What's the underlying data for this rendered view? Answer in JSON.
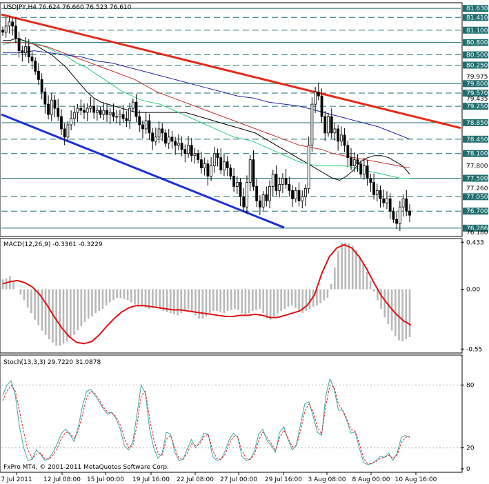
{
  "window": {
    "symbol_header": "USDJPY,H4  76.624 76.660 76.523 76.610"
  },
  "colors": {
    "background": "#ffffff",
    "price_line_box": "#1e6e6e",
    "candle": "#000000",
    "resistance_trend": "#e32a1a",
    "support_trend": "#1c2fd0",
    "ma_fast": "#000000",
    "ma_green": "#2fcf7f",
    "ma_red": "#c03030",
    "ma_blue": "#2020a0",
    "macd_hist": "#b8b8b8",
    "macd_signal": "#e01010",
    "stoch_main": "#3fa5a5",
    "stoch_signal": "#e02020"
  },
  "chart_data": [
    {
      "type": "candlestick",
      "title": "USDJPY,H4  76.624 76.660 76.523 76.610",
      "ylim": [
        76.1,
        81.75
      ],
      "x_tick_labels": [
        "7 Jul 2011",
        "12 Jul 08:00",
        "15 Jul 00:00",
        "19 Jul 16:00",
        "22 Jul 08:00",
        "27 Jul 00:00",
        "29 Jul 16:00",
        "3 Aug 08:00",
        "8 Aug 00:00",
        "10 Aug 16:00"
      ],
      "level_lines": [
        81.63,
        81.41,
        81.1,
        80.8,
        80.5,
        80.25,
        79.8,
        79.57,
        79.25,
        78.85,
        78.45,
        78.1,
        77.5,
        77.05,
        76.7,
        76.286
      ],
      "boxed_levels": [
        "81.630",
        "81.410",
        "81.100",
        "80.800",
        "80.500",
        "80.250",
        "79.800",
        "79.570",
        "79.250",
        "78.850",
        "78.450",
        "78.100",
        "77.500",
        "77.050",
        "76.700",
        "76.286"
      ],
      "plain_axis_labels": [
        "79.975",
        "79.435",
        "77.800",
        "77.260",
        "76.180"
      ],
      "close": [
        81.05,
        81.2,
        81.3,
        81.2,
        80.9,
        80.6,
        80.55,
        80.7,
        80.45,
        80.35,
        80.1,
        79.9,
        79.6,
        79.3,
        79.05,
        79.4,
        79.2,
        79.0,
        78.7,
        78.5,
        78.8,
        78.95,
        79.1,
        79.2,
        79.15,
        79.1,
        79.2,
        79.25,
        79.1,
        79.15,
        79.05,
        79.15,
        79.05,
        79.1,
        79.0,
        79.0,
        79.05,
        78.95,
        78.9,
        79.2,
        79.35,
        79.0,
        78.8,
        78.7,
        78.9,
        78.6,
        78.4,
        78.5,
        78.7,
        78.6,
        78.35,
        78.5,
        78.4,
        78.3,
        78.35,
        78.2,
        78.1,
        78.3,
        78.05,
        78.1,
        77.95,
        77.75,
        77.85,
        77.55,
        77.8,
        78.1,
        78.0,
        77.7,
        77.9,
        77.75,
        77.55,
        77.3,
        77.4,
        77.05,
        76.8,
        77.4,
        77.95,
        77.3,
        76.95,
        76.8,
        77.1,
        76.95,
        77.3,
        77.6,
        77.2,
        77.35,
        77.5,
        77.35,
        77.2,
        77.0,
        77.2,
        76.95,
        77.05,
        77.25,
        78.3,
        79.3,
        79.6,
        79.5,
        79.0,
        78.6,
        79.0,
        78.6,
        78.7,
        78.4,
        78.55,
        78.3,
        78.0,
        77.8,
        77.95,
        77.85,
        77.6,
        77.8,
        77.5,
        77.4,
        77.1,
        77.2,
        77.0,
        76.9,
        77.0,
        76.7,
        76.5,
        76.4,
        76.8,
        77.0,
        76.7,
        76.6
      ],
      "series": [
        {
          "name": "ma_fast",
          "values": [
            80.85,
            80.85,
            80.9,
            80.85,
            80.8,
            80.7,
            80.6,
            80.5,
            80.35,
            80.2,
            80.0,
            79.8,
            79.6,
            79.45,
            79.35,
            79.3,
            79.25,
            79.2,
            79.15,
            79.1,
            79.1,
            79.1,
            79.1,
            79.1,
            79.1,
            79.1,
            79.1,
            79.05,
            79.0,
            78.95,
            78.9,
            78.85,
            78.8,
            78.75,
            78.7,
            78.65,
            78.6,
            78.5,
            78.4,
            78.3,
            78.2,
            78.1,
            78.0,
            77.9,
            77.8,
            77.7,
            77.6,
            77.5,
            77.45,
            77.55,
            77.7,
            77.9,
            78.0,
            78.05,
            78.05,
            78.0,
            77.9,
            77.8,
            77.6
          ]
        },
        {
          "name": "ma_green",
          "values": [
            80.75,
            80.8,
            80.85,
            80.8,
            80.75,
            80.65,
            80.55,
            80.45,
            80.3,
            80.2,
            80.05,
            79.9,
            79.75,
            79.6,
            79.5,
            79.4,
            79.35,
            79.3,
            79.2,
            79.1,
            79.0,
            78.9,
            78.8,
            78.7,
            78.6,
            78.5,
            78.45,
            78.4,
            78.3,
            78.2,
            78.1,
            78.0,
            77.9,
            77.85,
            77.8,
            77.8,
            77.8,
            77.8,
            77.75,
            77.7,
            77.65,
            77.6,
            77.55,
            77.5,
            77.5
          ]
        },
        {
          "name": "ma_red",
          "values": [
            80.8,
            80.8,
            80.8,
            80.75,
            80.7,
            80.6,
            80.5,
            80.4,
            80.3,
            80.2,
            80.1,
            80.0,
            79.9,
            79.75,
            79.6,
            79.5,
            79.4,
            79.3,
            79.2,
            79.1,
            79.0,
            78.9,
            78.8,
            78.7,
            78.6,
            78.5,
            78.4,
            78.3,
            78.25,
            78.2,
            78.1,
            78.05,
            78.0,
            77.95,
            77.9,
            77.85,
            77.8,
            77.75
          ]
        },
        {
          "name": "ma_blue",
          "values": [
            80.55,
            80.55,
            80.6,
            80.55,
            80.5,
            80.45,
            80.35,
            80.3,
            80.2,
            80.1,
            80.0,
            79.9,
            79.8,
            79.7,
            79.6,
            79.5,
            79.45,
            79.35,
            79.3,
            79.25,
            79.15,
            79.05,
            78.95,
            78.85,
            78.75,
            78.6,
            78.45
          ]
        }
      ]
    },
    {
      "type": "bar",
      "title": "MACD(12,26,9) -0.3361 -0.3229",
      "ylim": [
        -0.58,
        0.46
      ],
      "y_tick_labels": [
        "0.433",
        "0.00",
        "-0.55"
      ],
      "histogram": [
        0.09,
        0.1,
        0.12,
        0.08,
        0.0,
        -0.05,
        -0.1,
        -0.17,
        -0.22,
        -0.28,
        -0.33,
        -0.38,
        -0.42,
        -0.46,
        -0.49,
        -0.52,
        -0.52,
        -0.5,
        -0.48,
        -0.45,
        -0.42,
        -0.38,
        -0.34,
        -0.3,
        -0.27,
        -0.25,
        -0.22,
        -0.2,
        -0.18,
        -0.15,
        -0.12,
        -0.1,
        -0.08,
        -0.08,
        -0.09,
        -0.1,
        -0.12,
        -0.14,
        -0.16,
        -0.16,
        -0.17,
        -0.18,
        -0.17,
        -0.16,
        -0.18,
        -0.2,
        -0.21,
        -0.22,
        -0.23,
        -0.24,
        -0.22,
        -0.2,
        -0.18,
        -0.2,
        -0.24,
        -0.27,
        -0.27,
        -0.25,
        -0.22,
        -0.2,
        -0.2,
        -0.21,
        -0.22,
        -0.2,
        -0.19,
        -0.18,
        -0.19,
        -0.22,
        -0.23,
        -0.22,
        -0.2,
        -0.19,
        -0.18,
        -0.22,
        -0.27,
        -0.28,
        -0.25,
        -0.22,
        -0.2,
        -0.18,
        -0.16,
        -0.15,
        -0.17,
        -0.2,
        -0.22,
        -0.2,
        -0.18,
        -0.16,
        -0.15,
        -0.13,
        -0.1,
        -0.08,
        0.05,
        0.2,
        0.35,
        0.43,
        0.43,
        0.42,
        0.4,
        0.36,
        0.3,
        0.24,
        0.16,
        0.08,
        -0.02,
        -0.1,
        -0.18,
        -0.26,
        -0.32,
        -0.38,
        -0.43,
        -0.47,
        -0.48,
        -0.46,
        -0.44
      ],
      "signal": [
        0.05,
        0.07,
        0.08,
        0.06,
        0.02,
        -0.05,
        -0.15,
        -0.26,
        -0.36,
        -0.44,
        -0.49,
        -0.5,
        -0.48,
        -0.42,
        -0.34,
        -0.27,
        -0.21,
        -0.17,
        -0.15,
        -0.15,
        -0.16,
        -0.17,
        -0.18,
        -0.19,
        -0.19,
        -0.2,
        -0.21,
        -0.22,
        -0.23,
        -0.24,
        -0.25,
        -0.25,
        -0.24,
        -0.24,
        -0.23,
        -0.24,
        -0.26,
        -0.26,
        -0.24,
        -0.22,
        -0.2,
        -0.15,
        -0.05,
        0.15,
        0.3,
        0.38,
        0.41,
        0.38,
        0.3,
        0.19,
        0.06,
        -0.06,
        -0.15,
        -0.23,
        -0.29,
        -0.33
      ]
    },
    {
      "type": "line",
      "title": "Stoch(13,3,3) 29.7220 31.0878",
      "ylim": [
        0,
        100
      ],
      "y_tick_labels": [
        "80",
        "20",
        "0"
      ],
      "series": [
        {
          "name": "main",
          "values": [
            70,
            80,
            84,
            70,
            40,
            20,
            8,
            9,
            18,
            14,
            8,
            10,
            16,
            24,
            34,
            38,
            33,
            26,
            40,
            60,
            74,
            76,
            70,
            64,
            57,
            52,
            54,
            48,
            38,
            22,
            18,
            26,
            52,
            80,
            72,
            38,
            20,
            10,
            15,
            35,
            33,
            16,
            8,
            9,
            19,
            28,
            20,
            26,
            34,
            33,
            12,
            8,
            9,
            17,
            28,
            34,
            30,
            12,
            8,
            9,
            17,
            33,
            38,
            27,
            22,
            16,
            35,
            40,
            28,
            18,
            23,
            43,
            62,
            64,
            50,
            35,
            32,
            70,
            86,
            76,
            56,
            56,
            46,
            34,
            35,
            20,
            6,
            4,
            5,
            8,
            12,
            11,
            15,
            8,
            15,
            30,
            32,
            30
          ]
        },
        {
          "name": "signal",
          "values": [
            65,
            74,
            80,
            74,
            55,
            35,
            18,
            10,
            14,
            15,
            10,
            9,
            13,
            20,
            29,
            35,
            34,
            29,
            36,
            52,
            68,
            74,
            72,
            66,
            59,
            54,
            53,
            50,
            42,
            29,
            20,
            22,
            42,
            70,
            74,
            48,
            28,
            14,
            13,
            28,
            32,
            20,
            10,
            9,
            15,
            24,
            22,
            24,
            31,
            33,
            18,
            10,
            9,
            14,
            24,
            31,
            31,
            18,
            10,
            9,
            14,
            27,
            35,
            30,
            24,
            18,
            30,
            37,
            30,
            21,
            22,
            37,
            55,
            62,
            54,
            40,
            33,
            60,
            80,
            78,
            62,
            56,
            48,
            38,
            36,
            24,
            10,
            5,
            5,
            7,
            10,
            11,
            13,
            10,
            13,
            25,
            30,
            31
          ]
        }
      ]
    }
  ],
  "footer": {
    "copyright": "FxPro MT4, © 2001-2011 MetaQuotes Software Corp."
  }
}
